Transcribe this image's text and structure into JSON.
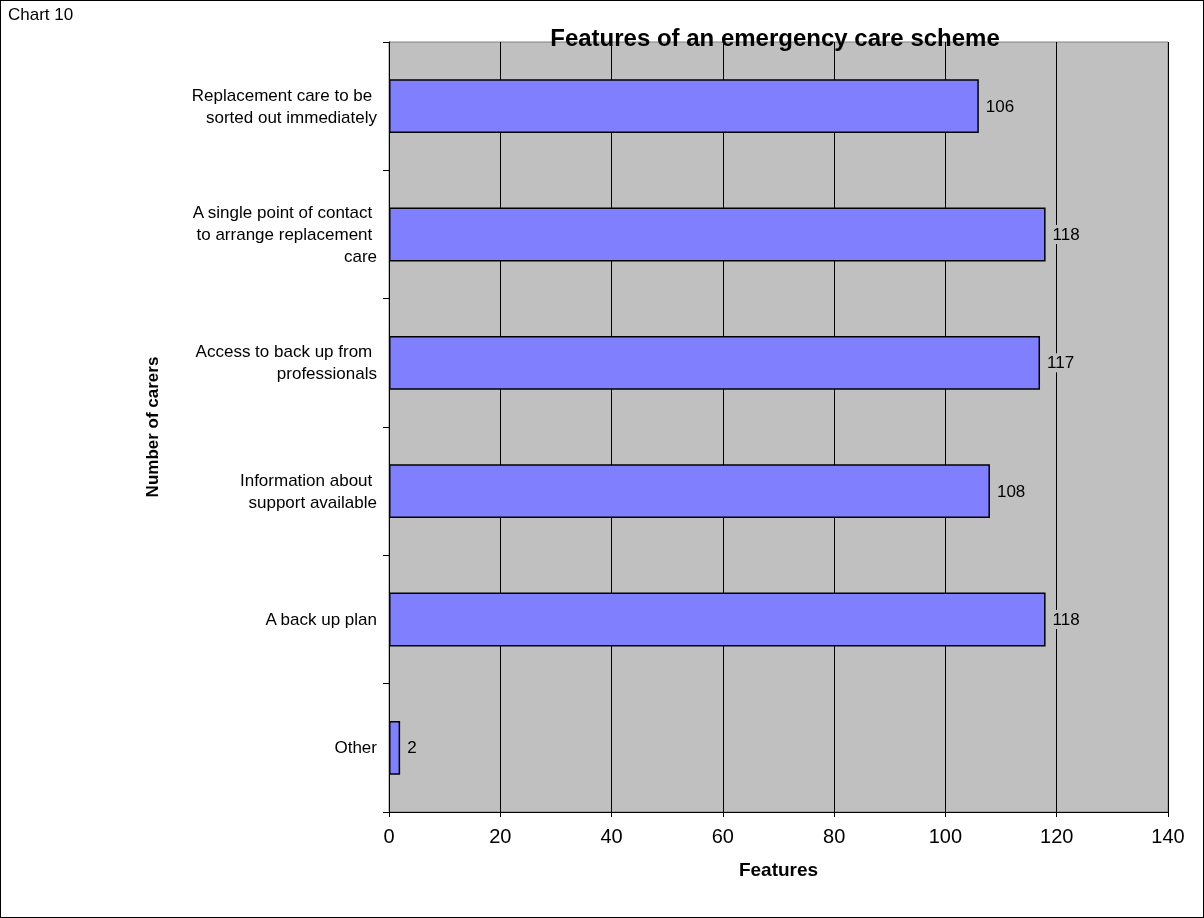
{
  "chart_data": {
    "type": "bar",
    "orientation": "horizontal",
    "title": "Features of an emergency care scheme",
    "xlabel": "Features",
    "ylabel": "Number of carers",
    "annotations": [
      "Chart 10"
    ],
    "categories": [
      "Replacement care to be sorted out immediately",
      "A single point of contact to arrange replacement care",
      "Access to back up from professionals",
      "Information about support available",
      "A back up plan",
      "Other"
    ],
    "values": [
      106,
      118,
      117,
      108,
      118,
      2
    ],
    "color": "#8080ff",
    "xlim": [
      0,
      140
    ],
    "xticks": [
      0,
      20,
      40,
      60,
      80,
      100,
      120,
      140
    ],
    "grid": "x",
    "data_labels": true
  }
}
